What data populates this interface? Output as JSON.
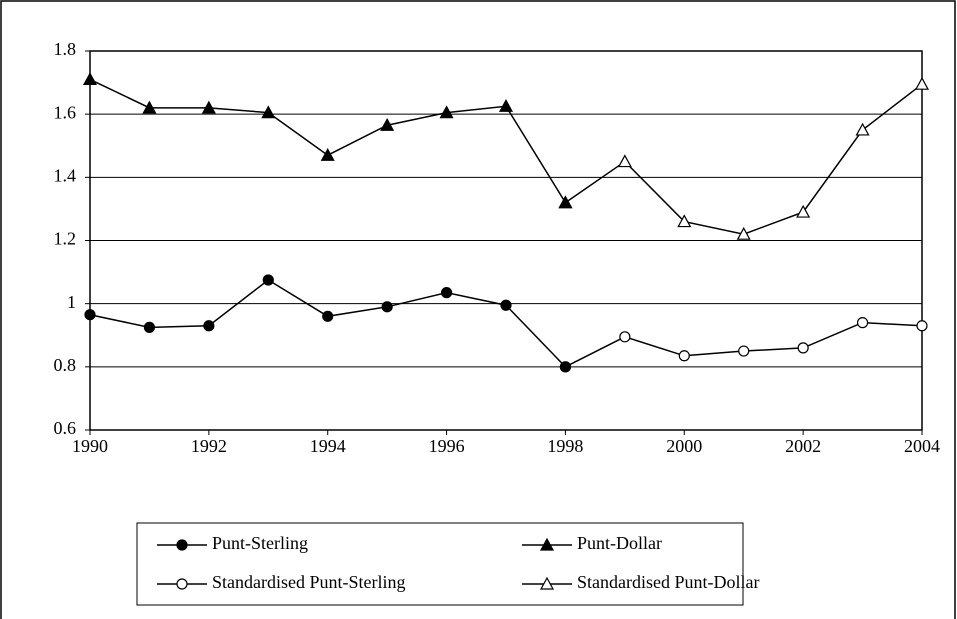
{
  "chart_data": {
    "type": "line",
    "x": [
      1990,
      1991,
      1992,
      1993,
      1994,
      1995,
      1996,
      1997,
      1998,
      1999,
      2000,
      2001,
      2002,
      2003,
      2004
    ],
    "series": [
      {
        "name": "Punt-Sterling",
        "color": "#000000",
        "marker": "circle",
        "filled": true,
        "values": [
          0.965,
          0.925,
          0.93,
          1.075,
          0.96,
          0.99,
          1.035,
          0.995,
          0.8,
          null,
          null,
          null,
          null,
          null,
          null
        ]
      },
      {
        "name": "Punt-Dollar",
        "color": "#000000",
        "marker": "triangle",
        "filled": true,
        "values": [
          1.71,
          1.62,
          1.62,
          1.605,
          1.47,
          1.565,
          1.605,
          1.625,
          1.32,
          null,
          null,
          null,
          null,
          null,
          null
        ]
      },
      {
        "name": "Standardised Punt-Sterling",
        "color": "#000000",
        "marker": "circle",
        "filled": false,
        "values": [
          null,
          null,
          null,
          null,
          null,
          null,
          null,
          null,
          0.8,
          0.895,
          0.835,
          0.85,
          0.86,
          0.94,
          0.93
        ]
      },
      {
        "name": "Standardised Punt-Dollar",
        "color": "#000000",
        "marker": "triangle",
        "filled": false,
        "values": [
          null,
          null,
          null,
          null,
          null,
          null,
          null,
          null,
          1.32,
          1.45,
          1.26,
          1.22,
          1.29,
          1.55,
          1.695
        ]
      }
    ],
    "xlim": [
      1990,
      2004
    ],
    "xticks": [
      1990,
      1992,
      1994,
      1996,
      1998,
      2000,
      2002,
      2004
    ],
    "ylim": [
      0.6,
      1.8
    ],
    "yticks": [
      0.6,
      0.8,
      1,
      1.2,
      1.4,
      1.6,
      1.8
    ],
    "grid": true,
    "legend": "bottom"
  }
}
